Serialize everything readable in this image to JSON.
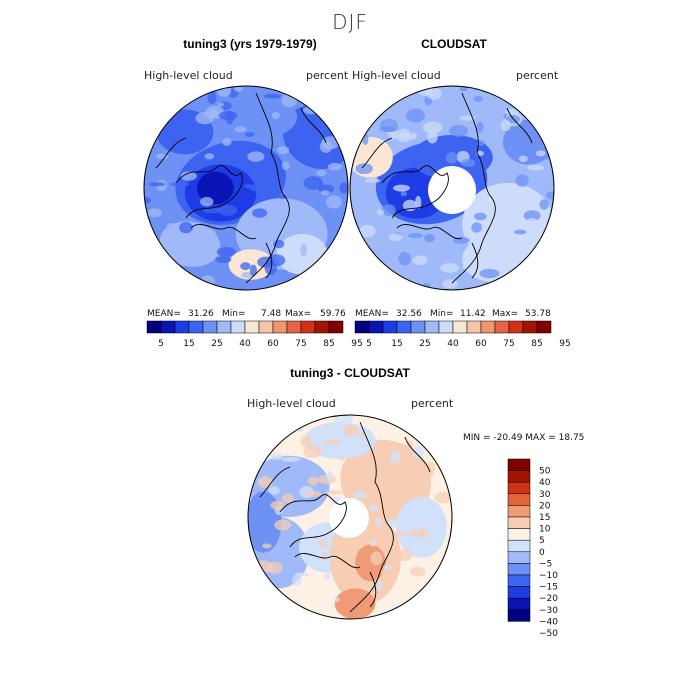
{
  "figure": {
    "title": "DJF"
  },
  "colors": {
    "scale_abs": [
      "#000080",
      "#0a14b4",
      "#1e3ce6",
      "#3c64f0",
      "#6e91f5",
      "#a0b9f8",
      "#cddcfa",
      "#fae6d2",
      "#f5c3aa",
      "#f0966e",
      "#e66446",
      "#d23214",
      "#a01400",
      "#800000"
    ],
    "scale_diff": [
      "#000080",
      "#0a14b4",
      "#1e3ce6",
      "#3c64f0",
      "#6e91f5",
      "#a0b9f8",
      "#d2e1fa",
      "#fdf1e6",
      "#f7cdb4",
      "#f09b76",
      "#e6643c",
      "#d23214",
      "#a01400",
      "#800000"
    ]
  },
  "chart_data": [
    {
      "type": "heatmap",
      "projection": "polar-stereographic",
      "title": "tuning3 (yrs 1979-1979)",
      "variable": "High-level cloud",
      "units": "percent",
      "mean_label": "MEAN=",
      "mean": "31.26",
      "min_label": "Min=",
      "min": "7.48",
      "max_label": "Max=",
      "max": "59.76",
      "levels": [
        "5",
        "15",
        "25",
        "40",
        "60",
        "75",
        "85",
        "95"
      ],
      "missing_pole": false,
      "field_description": "mostly 20-40% over ocean, up to 50% over Siberia"
    },
    {
      "type": "heatmap",
      "projection": "polar-stereographic",
      "title": "CLOUDSAT",
      "variable": "High-level cloud",
      "units": "percent",
      "mean_label": "MEAN=",
      "mean": "32.56",
      "min_label": "Min=",
      "min": "11.42",
      "max_label": "Max=",
      "max": "53.78",
      "levels": [
        "5",
        "15",
        "25",
        "40",
        "60",
        "75",
        "85",
        "95"
      ],
      "missing_pole": true,
      "field_description": "observations missing near the pole"
    },
    {
      "type": "heatmap",
      "projection": "polar-stereographic",
      "title": "tuning3 - CLOUDSAT",
      "variable": "High-level cloud",
      "units": "percent",
      "range_text": "MIN = -20.49 MAX =  18.75",
      "min": -20.49,
      "max": 18.75,
      "levels": [
        "50",
        "40",
        "30",
        "20",
        "15",
        "10",
        "5",
        "0",
        "−5",
        "−10",
        "−15",
        "−20",
        "−30",
        "−40",
        "−50"
      ],
      "missing_pole": true
    }
  ]
}
